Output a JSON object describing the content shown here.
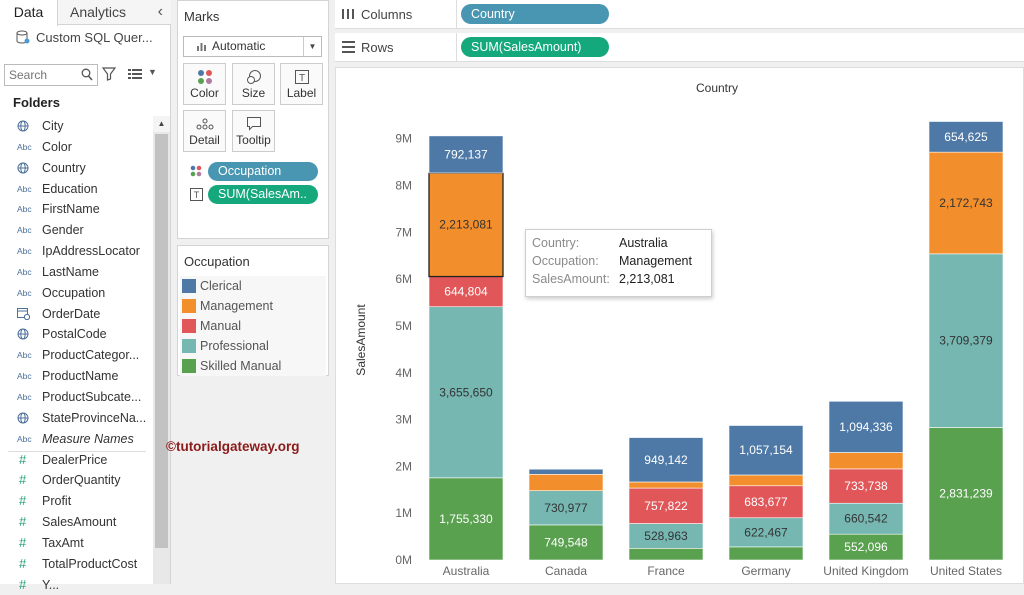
{
  "left_pane": {
    "tabs": [
      {
        "label": "Data"
      },
      {
        "label": "Analytics"
      }
    ],
    "collapse_glyph": "‹",
    "datasource": "Custom SQL Quer...",
    "search_placeholder": "Search",
    "folders_label": "Folders",
    "fields": [
      {
        "label": "City",
        "icon": "globe-icon",
        "kind": "geo"
      },
      {
        "label": "Color",
        "icon": "abc-icon",
        "kind": "dim"
      },
      {
        "label": "Country",
        "icon": "globe-icon",
        "kind": "geo"
      },
      {
        "label": "Education",
        "icon": "abc-icon",
        "kind": "dim"
      },
      {
        "label": "FirstName",
        "icon": "abc-icon",
        "kind": "dim"
      },
      {
        "label": "Gender",
        "icon": "abc-icon",
        "kind": "dim"
      },
      {
        "label": "IpAddressLocator",
        "icon": "abc-icon",
        "kind": "dim"
      },
      {
        "label": "LastName",
        "icon": "abc-icon",
        "kind": "dim"
      },
      {
        "label": "Occupation",
        "icon": "abc-icon",
        "kind": "dim"
      },
      {
        "label": "OrderDate",
        "icon": "calendar-icon",
        "kind": "date"
      },
      {
        "label": "PostalCode",
        "icon": "globe-icon",
        "kind": "geo"
      },
      {
        "label": "ProductCategor...",
        "icon": "abc-icon",
        "kind": "dim"
      },
      {
        "label": "ProductName",
        "icon": "abc-icon",
        "kind": "dim"
      },
      {
        "label": "ProductSubcate...",
        "icon": "abc-icon",
        "kind": "dim"
      },
      {
        "label": "StateProvinceNa...",
        "icon": "globe-icon",
        "kind": "geo"
      },
      {
        "label": "Measure Names",
        "icon": "abc-icon",
        "kind": "dim",
        "italic": true
      },
      {
        "label": "DealerPrice",
        "icon": "hash-icon",
        "kind": "measure"
      },
      {
        "label": "OrderQuantity",
        "icon": "hash-icon",
        "kind": "measure"
      },
      {
        "label": "Profit",
        "icon": "hash-icon",
        "kind": "measure"
      },
      {
        "label": "SalesAmount",
        "icon": "hash-icon",
        "kind": "measure"
      },
      {
        "label": "TaxAmt",
        "icon": "hash-icon",
        "kind": "measure"
      },
      {
        "label": "TotalProductCost",
        "icon": "hash-icon",
        "kind": "measure"
      },
      {
        "label": "Y...",
        "icon": "hash-icon",
        "kind": "measure"
      }
    ]
  },
  "marks": {
    "title": "Marks",
    "mark_type": "Automatic",
    "buttons": [
      {
        "label": "Color",
        "icon": "color-dots-icon"
      },
      {
        "label": "Size",
        "icon": "size-icon"
      },
      {
        "label": "Label",
        "icon": "label-icon"
      },
      {
        "label": "Detail",
        "icon": "detail-icon"
      },
      {
        "label": "Tooltip",
        "icon": "tooltip-icon"
      }
    ],
    "pills": [
      {
        "label": "Occupation",
        "color": "#4996b2"
      },
      {
        "label": "SUM(SalesAm..",
        "color": "#15a87d"
      }
    ]
  },
  "legend": {
    "title": "Occupation",
    "items": [
      {
        "label": "Clerical",
        "color": "#4e79a7"
      },
      {
        "label": "Management",
        "color": "#f28e2b"
      },
      {
        "label": "Manual",
        "color": "#e15759"
      },
      {
        "label": "Professional",
        "color": "#76b7b2"
      },
      {
        "label": "Skilled Manual",
        "color": "#59a14f"
      }
    ]
  },
  "shelves": {
    "columns_label": "Columns",
    "columns_pill": "Country",
    "rows_label": "Rows",
    "rows_pill": "SUM(SalesAmount)"
  },
  "tooltip": {
    "rows": [
      {
        "key": "Country:",
        "value": "Australia"
      },
      {
        "key": "Occupation:",
        "value": "Management"
      },
      {
        "key": "SalesAmount:",
        "value": "2,213,081"
      }
    ]
  },
  "watermark": "©tutorialgateway.org",
  "chart_data": {
    "type": "bar",
    "stacked": true,
    "title": "Country",
    "xlabel": "",
    "ylabel": "SalesAmount",
    "ylim": [
      0,
      9400000
    ],
    "yticks": [
      0,
      1000000,
      2000000,
      3000000,
      4000000,
      5000000,
      6000000,
      7000000,
      8000000,
      9000000
    ],
    "ytick_labels": [
      "0M",
      "1M",
      "2M",
      "3M",
      "4M",
      "5M",
      "6M",
      "7M",
      "8M",
      "9M"
    ],
    "categories": [
      "Australia",
      "Canada",
      "France",
      "Germany",
      "United Kingdom",
      "United States"
    ],
    "series": [
      {
        "name": "Skilled Manual",
        "color": "#59a14f",
        "values": [
          1755330,
          749548,
          250000,
          280000,
          552096,
          2831239
        ],
        "labels": [
          "1,755,330",
          "749,548",
          "",
          "",
          "552,096",
          "2,831,239"
        ]
      },
      {
        "name": "Professional",
        "color": "#76b7b2",
        "values": [
          3655650,
          730977,
          528963,
          622467,
          660542,
          3709379
        ],
        "labels": [
          "3,655,650",
          "730,977",
          "528,963",
          "622,467",
          "660,542",
          "3,709,379"
        ]
      },
      {
        "name": "Manual",
        "color": "#e15759",
        "values": [
          644804,
          0,
          757822,
          683677,
          733738,
          0
        ],
        "labels": [
          "644,804",
          "",
          "757,822",
          "683,677",
          "733,738",
          ""
        ]
      },
      {
        "name": "Management",
        "color": "#f28e2b",
        "values": [
          2213081,
          350000,
          130000,
          230000,
          350000,
          2172743
        ],
        "labels": [
          "2,213,081",
          "",
          "",
          "",
          "",
          "2,172,743"
        ]
      },
      {
        "name": "Clerical",
        "color": "#4e79a7",
        "values": [
          792137,
          110000,
          949142,
          1057154,
          1094336,
          654625
        ],
        "labels": [
          "792,137",
          "",
          "949,142",
          "1,057,154",
          "1,094,336",
          "654,625"
        ]
      }
    ],
    "highlight": {
      "category": "Australia",
      "series": "Management"
    },
    "grid": false,
    "legend": "left-card"
  }
}
